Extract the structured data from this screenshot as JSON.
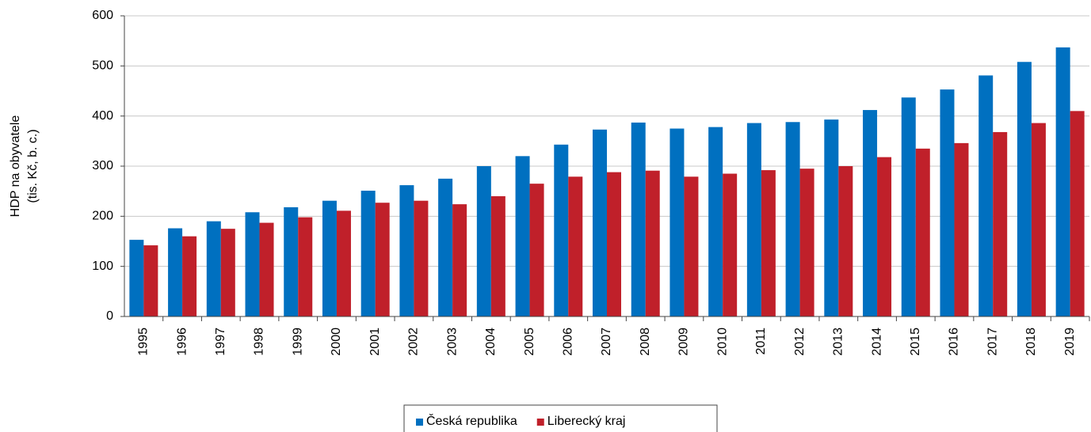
{
  "chart_data": {
    "type": "bar",
    "y_label": [
      "HDP na obyvatele",
      "(tis. Kč, b. c.)"
    ],
    "categories": [
      "1995",
      "1996",
      "1997",
      "1998",
      "1999",
      "2000",
      "2001",
      "2002",
      "2003",
      "2004",
      "2005",
      "2006",
      "2007",
      "2008",
      "2009",
      "2010",
      "2011",
      "2012",
      "2013",
      "2014",
      "2015",
      "2016",
      "2017",
      "2018",
      "2019"
    ],
    "series": [
      {
        "name": "Česká republika",
        "color": "#0070c0",
        "values": [
          153,
          176,
          190,
          208,
          218,
          231,
          251,
          262,
          275,
          300,
          320,
          343,
          373,
          387,
          375,
          378,
          386,
          388,
          393,
          412,
          437,
          453,
          481,
          508,
          537
        ]
      },
      {
        "name": "Liberecký kraj",
        "color": "#c0202a",
        "values": [
          142,
          160,
          175,
          187,
          198,
          211,
          227,
          231,
          224,
          240,
          265,
          279,
          288,
          291,
          279,
          285,
          292,
          295,
          300,
          318,
          335,
          346,
          368,
          386,
          410
        ]
      }
    ],
    "ylim": [
      0,
      600
    ],
    "yticks": [
      0,
      100,
      200,
      300,
      400,
      500,
      600
    ],
    "grid": true,
    "legend": "bottom"
  }
}
